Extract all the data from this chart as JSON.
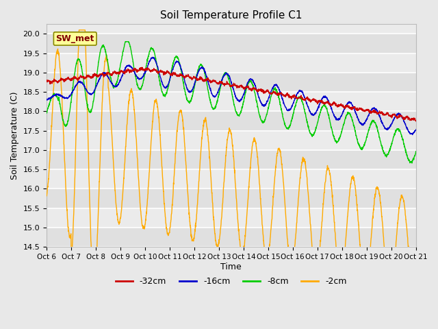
{
  "title": "Soil Temperature Profile C1",
  "xlabel": "Time",
  "ylabel": "Soil Temperature (C)",
  "ylim": [
    14.5,
    20.25
  ],
  "xlim": [
    0,
    15
  ],
  "xtick_labels": [
    "Oct 6",
    "Oct 7",
    "Oct 8",
    "Oct 9",
    "Oct 10",
    "Oct 11",
    "Oct 12",
    "Oct 13",
    "Oct 14",
    "Oct 15",
    "Oct 16",
    "Oct 17",
    "Oct 18",
    "Oct 19",
    "Oct 20",
    "Oct 21"
  ],
  "ytick_values": [
    14.5,
    15.0,
    15.5,
    16.0,
    16.5,
    17.0,
    17.5,
    18.0,
    18.5,
    19.0,
    19.5,
    20.0
  ],
  "legend_labels": [
    "-32cm",
    "-16cm",
    "-8cm",
    "-2cm"
  ],
  "legend_colors": [
    "#cc0000",
    "#0000cc",
    "#00cc00",
    "#ffaa00"
  ],
  "annotation_text": "SW_met",
  "annotation_bg": "#ffff99",
  "annotation_border": "#aa8800",
  "bg_color": "#e8e8e8",
  "plot_bg": "#f0f0f0",
  "line_colors": {
    "d32": "#cc0000",
    "d16": "#0000cc",
    "d8": "#00cc00",
    "d2": "#ffaa00"
  }
}
